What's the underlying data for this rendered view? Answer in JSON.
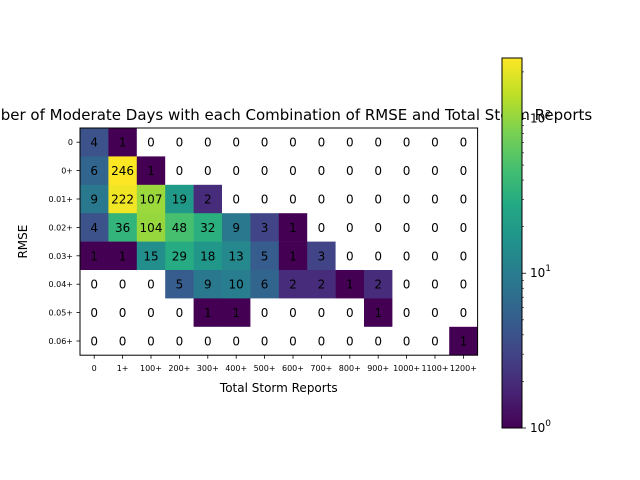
{
  "chart_data": {
    "type": "heatmap",
    "title": "Number of Moderate Days with each Combination of RMSE and Total Storm Reports",
    "xlabel": "Total Storm Reports",
    "ylabel": "RMSE",
    "x_categories": [
      "0",
      "1+",
      "100+",
      "200+",
      "300+",
      "400+",
      "500+",
      "600+",
      "700+",
      "800+",
      "900+",
      "1000+",
      "1100+",
      "1200+"
    ],
    "y_categories": [
      "0",
      "0+",
      "0.01+",
      "0.02+",
      "0.03+",
      "0.04+",
      "0.05+",
      "0.06+"
    ],
    "values": [
      [
        4,
        1,
        0,
        0,
        0,
        0,
        0,
        0,
        0,
        0,
        0,
        0,
        0,
        0
      ],
      [
        6,
        246,
        1,
        0,
        0,
        0,
        0,
        0,
        0,
        0,
        0,
        0,
        0,
        0
      ],
      [
        9,
        222,
        107,
        19,
        2,
        0,
        0,
        0,
        0,
        0,
        0,
        0,
        0,
        0
      ],
      [
        4,
        36,
        104,
        48,
        32,
        9,
        3,
        1,
        0,
        0,
        0,
        0,
        0,
        0
      ],
      [
        1,
        1,
        15,
        29,
        18,
        13,
        5,
        1,
        3,
        0,
        0,
        0,
        0,
        0
      ],
      [
        0,
        0,
        0,
        5,
        9,
        10,
        6,
        2,
        2,
        1,
        2,
        0,
        0,
        0
      ],
      [
        0,
        0,
        0,
        0,
        1,
        1,
        0,
        0,
        0,
        0,
        1,
        0,
        0,
        0
      ],
      [
        0,
        0,
        0,
        0,
        0,
        0,
        0,
        0,
        0,
        0,
        0,
        0,
        0,
        1
      ]
    ],
    "color_scale": "viridis",
    "color_norm": "log",
    "colorbar": {
      "range": [
        1,
        246
      ],
      "tick_labels": [
        {
          "value": 1,
          "base": "10",
          "exp": "0"
        },
        {
          "value": 10,
          "base": "10",
          "exp": "1"
        },
        {
          "value": 100,
          "base": "10",
          "exp": "2"
        }
      ]
    },
    "zero_cells_color": "#ffffff",
    "grid": false
  }
}
